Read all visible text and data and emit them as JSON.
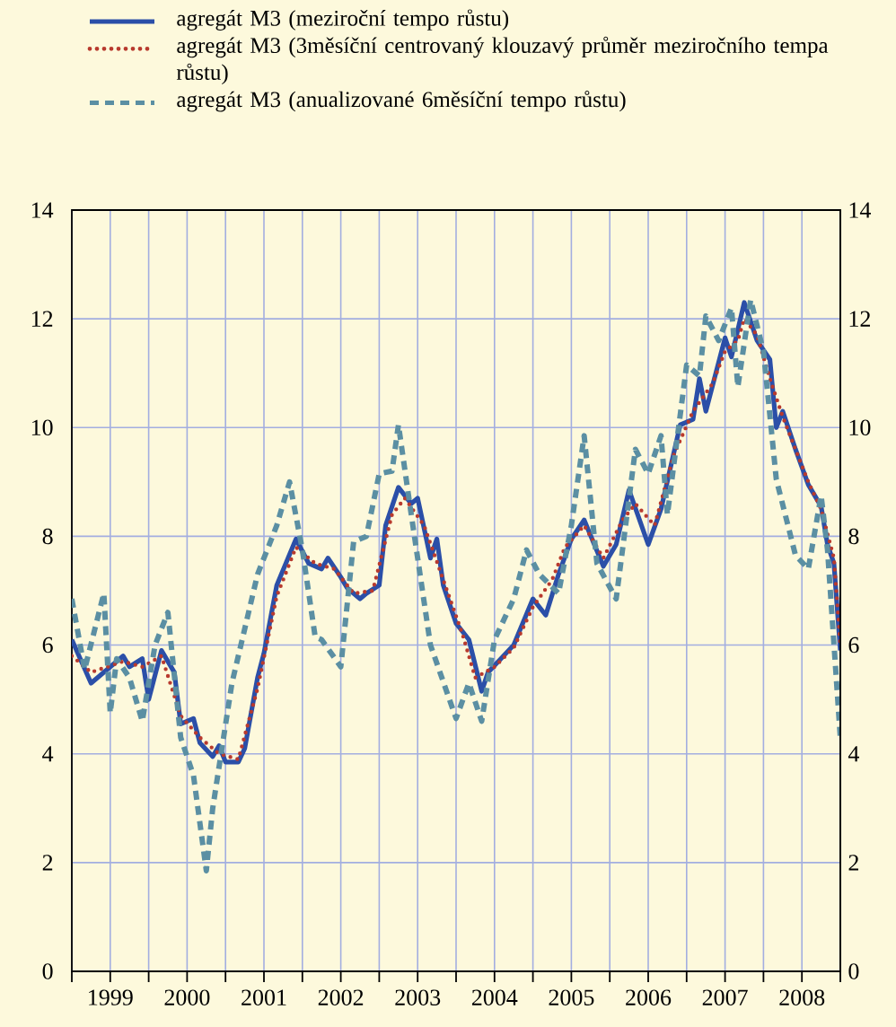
{
  "chart_data": {
    "type": "line",
    "series": [
      {
        "name": "agregát M3 (meziroční tempo růstu)",
        "color": "#2b4fa8",
        "line_style": "solid",
        "x": [
          "1999-01",
          "1999-04",
          "1999-09",
          "1999-10",
          "1999-12",
          "2000-01",
          "2000-03",
          "2000-05",
          "2000-06",
          "2000-08",
          "2000-09",
          "2000-11",
          "2000-12",
          "2001-01",
          "2001-03",
          "2001-04",
          "2001-06",
          "2001-07",
          "2001-09",
          "2001-12",
          "2002-02",
          "2002-04",
          "2002-05",
          "2002-07",
          "2002-08",
          "2002-10",
          "2002-11",
          "2003-01",
          "2003-02",
          "2003-04",
          "2003-06",
          "2003-07",
          "2003-09",
          "2003-10",
          "2003-11",
          "2004-01",
          "2004-03",
          "2004-05",
          "2004-06",
          "2004-08",
          "2004-10",
          "2005-01",
          "2005-03",
          "2005-05",
          "2005-07",
          "2005-09",
          "2005-12",
          "2006-02",
          "2006-04",
          "2006-07",
          "2006-09",
          "2006-12",
          "2007-02",
          "2007-03",
          "2007-04",
          "2007-07",
          "2007-08",
          "2007-10",
          "2007-12",
          "2008-02",
          "2008-03",
          "2008-04",
          "2008-06",
          "2008-08",
          "2008-10",
          "2008-11",
          "2008-12",
          "2009-01"
        ],
        "values": [
          6.1,
          5.3,
          5.8,
          5.6,
          5.75,
          5.0,
          5.9,
          5.5,
          4.55,
          4.65,
          4.2,
          3.95,
          4.15,
          3.85,
          3.85,
          4.1,
          5.4,
          5.85,
          7.1,
          7.95,
          7.5,
          7.4,
          7.6,
          7.25,
          7.05,
          6.85,
          6.95,
          7.1,
          8.2,
          8.9,
          8.6,
          8.7,
          7.6,
          7.95,
          7.1,
          6.4,
          6.1,
          5.15,
          5.5,
          5.75,
          6.0,
          6.85,
          6.55,
          7.3,
          7.95,
          8.3,
          7.45,
          7.85,
          8.85,
          7.85,
          8.5,
          10.05,
          10.15,
          10.9,
          10.3,
          11.65,
          11.3,
          12.3,
          11.6,
          11.25,
          10.0,
          10.3,
          9.6,
          8.95,
          8.55,
          7.85,
          7.5,
          5.9
        ]
      },
      {
        "name": "agregát M3 (3měsíční centrovaný klouzavý průměr meziročního tempa růstu)",
        "color": "#b83a2e",
        "line_style": "dotted",
        "x": [
          "1999-01",
          "1999-04",
          "1999-09",
          "1999-12",
          "2000-03",
          "2000-06",
          "2000-09",
          "2000-12",
          "2001-03",
          "2001-06",
          "2001-09",
          "2001-12",
          "2002-03",
          "2002-06",
          "2002-09",
          "2002-12",
          "2003-03",
          "2003-05",
          "2003-08",
          "2003-11",
          "2004-02",
          "2004-04",
          "2004-07",
          "2004-10",
          "2005-01",
          "2005-04",
          "2005-06",
          "2005-09",
          "2005-12",
          "2006-03",
          "2006-05",
          "2006-08",
          "2006-11",
          "2007-02",
          "2007-05",
          "2007-07",
          "2007-09",
          "2007-10",
          "2007-12",
          "2008-02",
          "2008-04",
          "2008-06",
          "2008-08",
          "2008-10",
          "2008-12",
          "2009-01"
        ],
        "values": [
          5.8,
          5.5,
          5.7,
          5.6,
          5.8,
          4.7,
          4.3,
          4.0,
          3.9,
          5.2,
          6.9,
          7.8,
          7.5,
          7.4,
          6.95,
          7.0,
          8.4,
          8.7,
          8.2,
          7.2,
          6.2,
          5.4,
          5.6,
          5.95,
          6.7,
          7.2,
          7.8,
          8.2,
          7.6,
          8.3,
          8.6,
          8.2,
          9.5,
          10.3,
          10.8,
          11.4,
          11.6,
          12.0,
          11.7,
          10.9,
          10.2,
          9.6,
          9.0,
          8.5,
          7.6,
          6.0
        ]
      },
      {
        "name": "agregát M3 (anualizované 6měsíční tempo růstu)",
        "color": "#5b8fa3",
        "line_style": "dashed",
        "x": [
          "1999-01",
          "1999-03",
          "1999-06",
          "1999-07",
          "1999-08",
          "1999-10",
          "1999-12",
          "2000-02",
          "2000-04",
          "2000-06",
          "2000-08",
          "2000-10",
          "2000-11",
          "2001-02",
          "2001-06",
          "2001-09",
          "2001-11",
          "2002-01",
          "2002-03",
          "2002-04",
          "2002-07",
          "2002-09",
          "2002-11",
          "2003-01",
          "2003-03",
          "2003-04",
          "2003-06",
          "2003-09",
          "2004-01",
          "2004-03",
          "2004-05",
          "2004-07",
          "2004-10",
          "2004-12",
          "2005-02",
          "2005-05",
          "2005-07",
          "2005-09",
          "2005-11",
          "2006-02",
          "2006-05",
          "2006-07",
          "2006-09",
          "2006-10",
          "2007-01",
          "2007-03",
          "2007-04",
          "2007-06",
          "2007-08",
          "2007-09",
          "2007-11",
          "2008-01",
          "2008-03",
          "2008-06",
          "2008-08",
          "2008-10",
          "2008-11",
          "2009-01"
        ],
        "values": [
          6.85,
          5.55,
          6.95,
          4.75,
          5.75,
          5.4,
          4.6,
          6.0,
          6.6,
          4.3,
          3.6,
          1.85,
          3.0,
          5.3,
          7.3,
          8.2,
          9.0,
          7.75,
          6.15,
          6.1,
          5.6,
          7.9,
          8.0,
          9.15,
          9.2,
          10.05,
          8.4,
          6.0,
          4.65,
          5.3,
          4.6,
          6.1,
          6.85,
          7.75,
          7.3,
          6.95,
          8.2,
          9.85,
          7.5,
          6.85,
          9.6,
          9.15,
          9.85,
          8.4,
          11.15,
          10.95,
          12.05,
          11.6,
          12.2,
          10.75,
          12.35,
          11.4,
          9.05,
          7.65,
          7.4,
          8.75,
          7.75,
          4.3
        ]
      }
    ],
    "xlim": [
      "1999-01",
      "2009-01"
    ],
    "xticks": [
      {
        "value": "1999-01",
        "label": null
      },
      {
        "value": "1999-07",
        "label": "1999"
      },
      {
        "value": "2000-01",
        "label": null
      },
      {
        "value": "2000-07",
        "label": "2000"
      },
      {
        "value": "2001-01",
        "label": null
      },
      {
        "value": "2001-07",
        "label": "2001"
      },
      {
        "value": "2002-01",
        "label": null
      },
      {
        "value": "2002-07",
        "label": "2002"
      },
      {
        "value": "2003-01",
        "label": null
      },
      {
        "value": "2003-07",
        "label": "2003"
      },
      {
        "value": "2004-01",
        "label": null
      },
      {
        "value": "2004-07",
        "label": "2004"
      },
      {
        "value": "2005-01",
        "label": null
      },
      {
        "value": "2005-07",
        "label": "2005"
      },
      {
        "value": "2006-01",
        "label": null
      },
      {
        "value": "2006-07",
        "label": "2006"
      },
      {
        "value": "2007-01",
        "label": null
      },
      {
        "value": "2007-07",
        "label": "2007"
      },
      {
        "value": "2008-01",
        "label": null
      },
      {
        "value": "2008-07",
        "label": "2008"
      },
      {
        "value": "2009-01",
        "label": null
      }
    ],
    "ylim": [
      0,
      14
    ],
    "yticks": [
      0,
      2,
      4,
      6,
      8,
      10,
      12,
      14
    ],
    "y2lim": [
      0,
      14
    ],
    "y2ticks": [
      0,
      2,
      4,
      6,
      8,
      10,
      12,
      14
    ],
    "grid": true,
    "legend": "top"
  }
}
